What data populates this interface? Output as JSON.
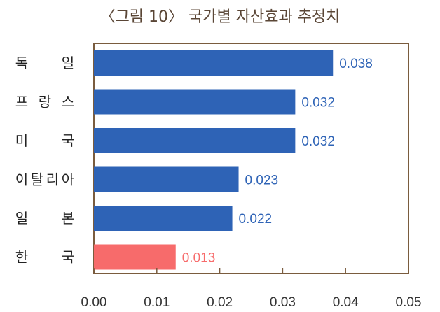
{
  "title": "〈그림 10〉 국가별 자산효과 추정치",
  "colors": {
    "bar": "#2e63b6",
    "highlight": "#f76b6b",
    "axis": "#7a5c3e"
  },
  "chart_data": {
    "type": "bar",
    "orientation": "horizontal",
    "title": "〈그림 10〉 국가별 자산효과 추정치",
    "categories": [
      "독 일",
      "프랑스",
      "미 국",
      "이탈리아",
      "일 본",
      "한 국"
    ],
    "values": [
      0.038,
      0.032,
      0.032,
      0.023,
      0.022,
      0.013
    ],
    "value_labels": [
      "0.038",
      "0.032",
      "0.032",
      "0.023",
      "0.022",
      "0.013"
    ],
    "highlight": [
      "한 국"
    ],
    "xlim": [
      0,
      0.05
    ],
    "xticks": [
      "0.00",
      "0.01",
      "0.02",
      "0.03",
      "0.04",
      "0.05"
    ],
    "grid": false,
    "legend": "none"
  }
}
